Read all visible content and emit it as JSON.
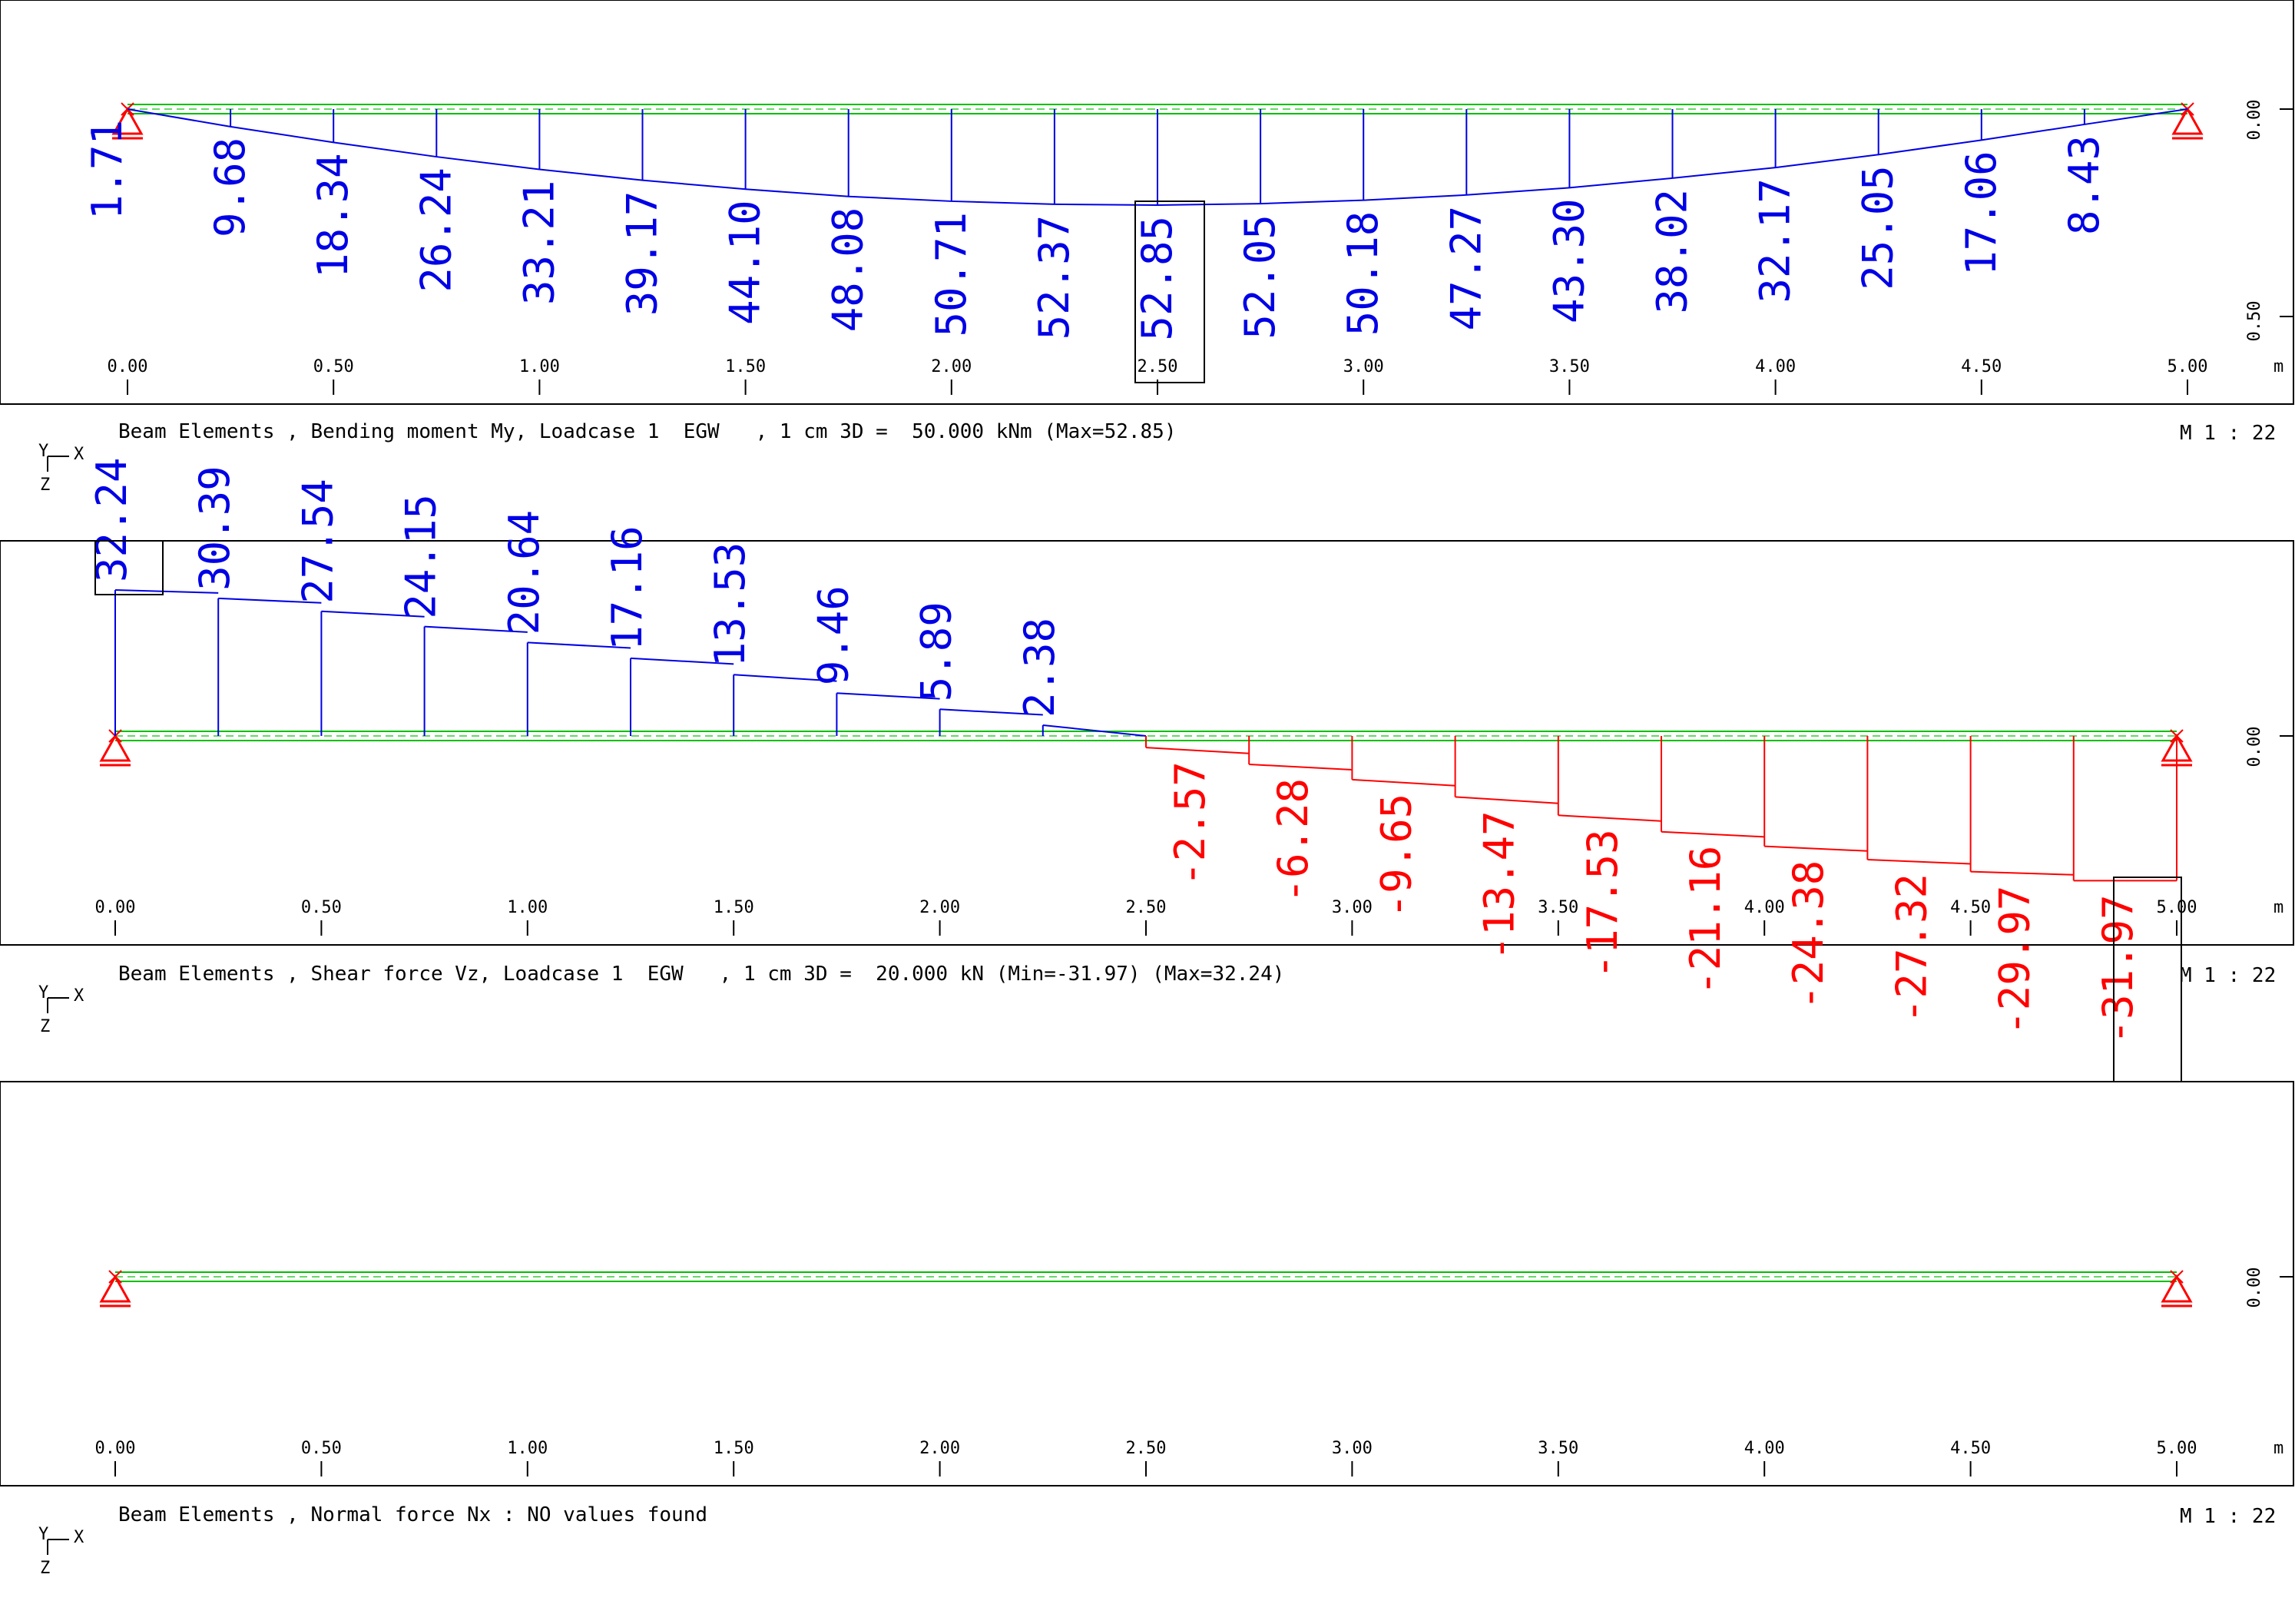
{
  "colors": {
    "positive": "#0000e6",
    "negative": "#ff0000",
    "beam": "#00c000",
    "support": "#ff0000",
    "frame": "#000000"
  },
  "axis": {
    "ticks": [
      "0.00",
      "0.50",
      "1.00",
      "1.50",
      "2.00",
      "2.50",
      "3.00",
      "3.50",
      "4.00",
      "4.50",
      "5.00"
    ],
    "unit": "m",
    "right_zero": "0.00",
    "right_050": "0.50"
  },
  "orientation": {
    "y": "Y",
    "x": "X",
    "z": "Z"
  },
  "panels": [
    {
      "caption": "Beam Elements , Bending moment My, Loadcase 1  EGW   , 1 cm 3D =  50.000 kNm (Max=52.85)",
      "scale": "M 1 : 22",
      "values": [
        "1.71",
        "9.68",
        "18.34",
        "26.24",
        "33.21",
        "39.17",
        "44.10",
        "48.08",
        "50.71",
        "52.37",
        "52.85",
        "52.05",
        "50.18",
        "47.27",
        "43.30",
        "38.02",
        "32.17",
        "25.05",
        "17.06",
        "8.43"
      ]
    },
    {
      "caption": "Beam Elements , Shear force Vz, Loadcase 1  EGW   , 1 cm 3D =  20.000 kN (Min=-31.97) (Max=32.24)",
      "scale": "M 1 : 22",
      "values": [
        "32.24",
        "30.39",
        "27.54",
        "24.15",
        "20.64",
        "17.16",
        "13.53",
        "9.46",
        "5.89",
        "2.38",
        "-2.57",
        "-6.28",
        "-9.65",
        "-13.47",
        "-17.53",
        "-21.16",
        "-24.38",
        "-27.32",
        "-29.97",
        "-31.97"
      ]
    },
    {
      "caption": "Beam Elements , Normal force Nx : NO values found",
      "scale": "M 1 : 22",
      "values": []
    }
  ],
  "chart_data": [
    {
      "type": "area",
      "title": "Beam Elements , Bending moment My, Loadcase 1  EGW   , 1 cm 3D =  50.000 kNm (Max=52.85)",
      "xlabel": "m",
      "x": [
        0.0,
        0.25,
        0.5,
        0.75,
        1.0,
        1.25,
        1.5,
        1.75,
        2.0,
        2.25,
        2.5,
        2.75,
        3.0,
        3.25,
        3.5,
        3.75,
        4.0,
        4.25,
        4.5,
        4.75,
        5.0
      ],
      "xlim": [
        0,
        5
      ],
      "y": [
        0.0,
        9.68,
        18.34,
        26.24,
        33.21,
        39.17,
        44.1,
        48.08,
        50.71,
        52.37,
        52.85,
        52.05,
        50.18,
        47.27,
        43.3,
        38.02,
        32.17,
        25.05,
        17.06,
        8.43,
        0.0
      ],
      "max": 52.85
    },
    {
      "type": "area",
      "title": "Beam Elements , Shear force Vz, Loadcase 1  EGW   , 1 cm 3D =  20.000 kN (Min=-31.97) (Max=32.24)",
      "xlabel": "m",
      "x": [
        0.0,
        0.25,
        0.5,
        0.75,
        1.0,
        1.25,
        1.5,
        1.75,
        2.0,
        2.25,
        2.5,
        2.75,
        3.0,
        3.25,
        3.5,
        3.75,
        4.0,
        4.25,
        4.5,
        4.75,
        5.0
      ],
      "xlim": [
        0,
        5
      ],
      "segments": [
        32.24,
        30.39,
        27.54,
        24.15,
        20.64,
        17.16,
        13.53,
        9.46,
        5.89,
        2.38,
        -2.57,
        -6.28,
        -9.65,
        -13.47,
        -17.53,
        -21.16,
        -24.38,
        -27.32,
        -29.97,
        -31.97
      ],
      "min": -31.97,
      "max": 32.24
    }
  ]
}
